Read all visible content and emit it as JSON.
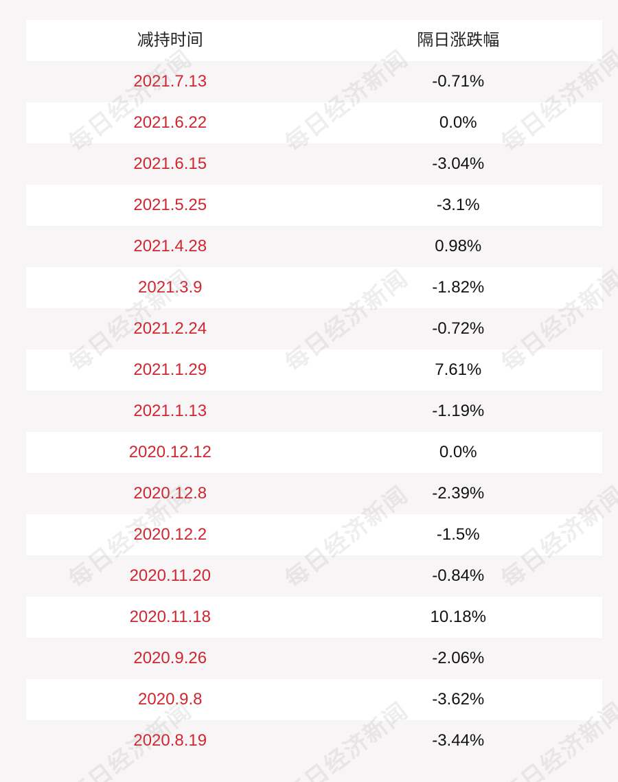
{
  "table": {
    "headers": {
      "date": "减持时间",
      "change": "隔日涨跌幅"
    },
    "rows": [
      {
        "date": "2021.7.13",
        "change": "-0.71%"
      },
      {
        "date": "2021.6.22",
        "change": "0.0%"
      },
      {
        "date": "2021.6.15",
        "change": "-3.04%"
      },
      {
        "date": "2021.5.25",
        "change": "-3.1%"
      },
      {
        "date": "2021.4.28",
        "change": "0.98%"
      },
      {
        "date": "2021.3.9",
        "change": "-1.82%"
      },
      {
        "date": "2021.2.24",
        "change": "-0.72%"
      },
      {
        "date": "2021.1.29",
        "change": "7.61%"
      },
      {
        "date": "2021.1.13",
        "change": "-1.19%"
      },
      {
        "date": "2020.12.12",
        "change": "0.0%"
      },
      {
        "date": "2020.12.8",
        "change": "-2.39%"
      },
      {
        "date": "2020.12.2",
        "change": "-1.5%"
      },
      {
        "date": "2020.11.20",
        "change": "-0.84%"
      },
      {
        "date": "2020.11.18",
        "change": "10.18%"
      },
      {
        "date": "2020.9.26",
        "change": "-2.06%"
      },
      {
        "date": "2020.9.8",
        "change": "-3.62%"
      },
      {
        "date": "2020.8.19",
        "change": "-3.44%"
      }
    ]
  },
  "watermark": {
    "text": "每日经济新闻"
  },
  "colors": {
    "date_text": "#d0262f",
    "value_text": "#111111",
    "stripe": "#f8f5f6",
    "row": "#ffffff"
  }
}
